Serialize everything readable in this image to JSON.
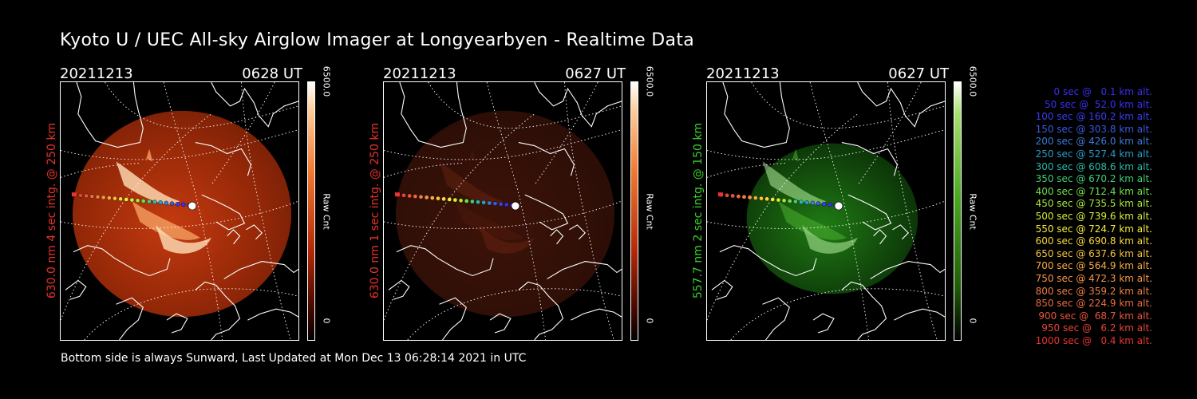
{
  "title": "Kyoto U / UEC All-sky Airglow Imager at Longyearbyen - Realtime Data",
  "footer": "Bottom side is always Sunward, Last Updated at Mon Dec 13 06:28:14 2021 in UTC",
  "panels": [
    {
      "date": "20211213",
      "time": "0628 UT",
      "ylabel": "630.0 nm 4 sec intg. @ 250 km",
      "label_color": "#e8322a",
      "theme": "red",
      "intensity": 1.0,
      "cbar_max": "6500.0",
      "cbar_unit": "Raw Cnt",
      "cbar_min": "0"
    },
    {
      "date": "20211213",
      "time": "0627 UT",
      "ylabel": "630.0 nm 1 sec intg. @ 250 km",
      "label_color": "#e8322a",
      "theme": "red",
      "intensity": 0.28,
      "cbar_max": "6500.0",
      "cbar_unit": "Raw Cnt",
      "cbar_min": "0"
    },
    {
      "date": "20211213",
      "time": "0627 UT",
      "ylabel": "557.7 nm 2 sec intg. @ 150 km",
      "label_color": "#3ad12c",
      "theme": "green",
      "intensity": 0.4,
      "cbar_max": "6500.0",
      "cbar_unit": "Raw Cnt",
      "cbar_min": "0"
    }
  ],
  "legend": [
    {
      "text": "0 sec @   0.1 km alt.",
      "color": "#3a2ef0"
    },
    {
      "text": "50 sec @  52.0 km alt.",
      "color": "#3a2ef0"
    },
    {
      "text": "100 sec @ 160.2 km alt.",
      "color": "#3a3cf0"
    },
    {
      "text": "150 sec @ 303.8 km alt.",
      "color": "#3a5ae0"
    },
    {
      "text": "200 sec @ 426.0 km alt.",
      "color": "#3a7ad8"
    },
    {
      "text": "250 sec @ 527.4 km alt.",
      "color": "#2a9ac8"
    },
    {
      "text": "300 sec @ 608.6 km alt.",
      "color": "#2ab8a8"
    },
    {
      "text": "350 sec @ 670.2 km alt.",
      "color": "#3ed07a"
    },
    {
      "text": "400 sec @ 712.4 km alt.",
      "color": "#6ee04a"
    },
    {
      "text": "450 sec @ 735.5 km alt.",
      "color": "#a8e83a"
    },
    {
      "text": "500 sec @ 739.6 km alt.",
      "color": "#d8ec36"
    },
    {
      "text": "550 sec @ 724.7 km alt.",
      "color": "#f4ec38"
    },
    {
      "text": "600 sec @ 690.8 km alt.",
      "color": "#f8d83a"
    },
    {
      "text": "650 sec @ 637.6 km alt.",
      "color": "#f8c23c"
    },
    {
      "text": "700 sec @ 564.9 km alt.",
      "color": "#f8aa40"
    },
    {
      "text": "750 sec @ 472.3 km alt.",
      "color": "#f89442"
    },
    {
      "text": "800 sec @ 359.2 km alt.",
      "color": "#f07e40"
    },
    {
      "text": "850 sec @ 224.9 km alt.",
      "color": "#ea6a3e"
    },
    {
      "text": "900 sec @  68.7 km alt.",
      "color": "#e8563a"
    },
    {
      "text": "950 sec @   6.2 km alt.",
      "color": "#e84436"
    },
    {
      "text": "1000 sec @   0.4 km alt.",
      "color": "#e83432"
    }
  ]
}
